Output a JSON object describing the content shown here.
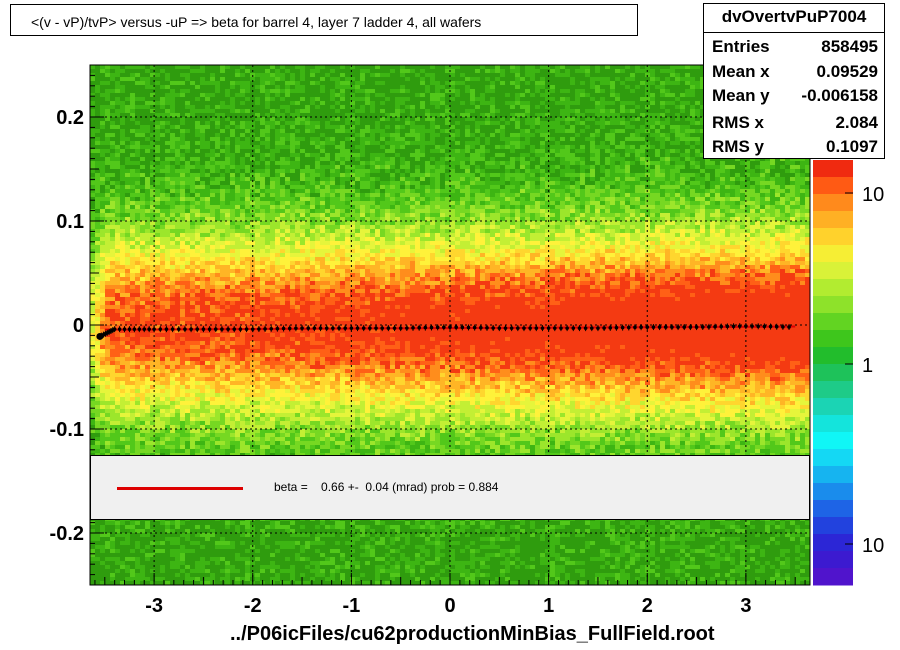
{
  "title": "<(v - vP)/tvP> versus  -uP => beta for barrel 4, layer 7 ladder 4, all wafers",
  "footer": "../P06icFiles/cu62productionMinBias_FullField.root",
  "stats": {
    "name": "dvOvertvPuP7004",
    "rows": [
      {
        "label": "Entries",
        "value": "858495"
      },
      {
        "label": "Mean x",
        "value": "0.09529"
      },
      {
        "label": "Mean y",
        "value": "-0.006158"
      },
      {
        "label": "RMS x",
        "value": "2.084"
      },
      {
        "label": "RMS y",
        "value": "0.1097"
      }
    ]
  },
  "fit": {
    "text": "beta =    0.66 +-  0.04 (mrad) prob = 0.884",
    "line_color": "#dd0000"
  },
  "chart_data": {
    "type": "heatmap",
    "title": "<(v - vP)/tvP> versus  -uP => beta for barrel 4, layer 7 ladder 4, all wafers",
    "xlabel": "",
    "ylabel": "",
    "xlim": [
      -3.65,
      3.65
    ],
    "ylim": [
      -0.25,
      0.25
    ],
    "x_ticks": [
      -3,
      -2,
      -1,
      0,
      1,
      2,
      3
    ],
    "y_ticks": [
      -0.2,
      -0.1,
      0,
      0.1,
      0.2
    ],
    "x_tick_labels": [
      "-3",
      "-2",
      "-1",
      "0",
      "1",
      "2",
      "3"
    ],
    "y_tick_labels": [
      "-0.2",
      "-0.1",
      "0",
      "0.1",
      "0.2"
    ],
    "grid": true,
    "z_scale": "log",
    "colorbar_labels": [
      "10",
      "1",
      "10"
    ],
    "profile": {
      "x": [
        -3.55,
        -3.4,
        -3.0,
        -2.5,
        -2.0,
        -1.5,
        -1.0,
        -0.5,
        0.0,
        0.5,
        1.0,
        1.5,
        2.0,
        2.5,
        3.0,
        3.5
      ],
      "y": [
        -0.011,
        -0.004,
        -0.004,
        -0.004,
        -0.004,
        -0.003,
        -0.003,
        -0.003,
        -0.002,
        -0.003,
        -0.003,
        -0.003,
        -0.002,
        -0.002,
        -0.001,
        -0.002
      ]
    },
    "fit_line": {
      "x": [
        -3.5,
        3.5
      ],
      "y": [
        -0.0045,
        -0.0015
      ],
      "color": "#dd0000"
    }
  }
}
